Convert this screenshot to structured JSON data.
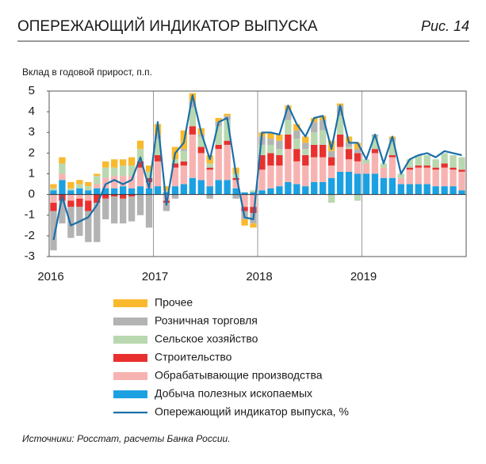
{
  "chart_data": {
    "type": "bar",
    "stacked": true,
    "title": "ОПЕРЕЖАЮЩИЙ ИНДИКАТОР ВЫПУСКА",
    "figure_label": "Рис. 14",
    "y_axis_label": "Вклад в годовой прирост, п.п.",
    "source": "Источники: Росстат, расчеты Банка России.",
    "categories": [
      "2016",
      null,
      null,
      null,
      null,
      null,
      null,
      null,
      null,
      null,
      null,
      null,
      "2017",
      null,
      null,
      null,
      null,
      null,
      null,
      null,
      null,
      null,
      null,
      null,
      "2018",
      null,
      null,
      null,
      null,
      null,
      null,
      null,
      null,
      null,
      null,
      null,
      "2019",
      null,
      null,
      null,
      null,
      null,
      null,
      null,
      null,
      null,
      null,
      null
    ],
    "ylim": [
      -3,
      5
    ],
    "yticks": [
      -3,
      -2,
      -1,
      0,
      1,
      2,
      3,
      4,
      5
    ],
    "series": [
      {
        "name": "Добыча полезных ископаемых",
        "color": "#1ba1e2",
        "values": [
          0.2,
          0.7,
          0.2,
          0.3,
          0.2,
          0.3,
          0.3,
          0.3,
          0.4,
          0.3,
          0.4,
          0.3,
          0.4,
          0.1,
          0.4,
          0.5,
          0.8,
          0.7,
          0.4,
          0.7,
          0.7,
          0.3,
          0.1,
          0.1,
          0.2,
          0.3,
          0.4,
          0.6,
          0.5,
          0.4,
          0.6,
          0.6,
          0.8,
          1.1,
          1.1,
          1.0,
          1.0,
          1.0,
          0.8,
          0.8,
          0.5,
          0.5,
          0.5,
          0.5,
          0.4,
          0.4,
          0.4,
          0.2
        ]
      },
      {
        "name": "Обрабатывающие производства",
        "color": "#f7b3b1",
        "values": [
          -0.4,
          0.3,
          -0.3,
          -0.2,
          -0.3,
          0.2,
          0.5,
          0.6,
          0.5,
          0.6,
          0.9,
          0.3,
          1.2,
          -0.3,
          0.9,
          0.9,
          2.1,
          1.3,
          0.8,
          1.5,
          1.7,
          0.4,
          -0.6,
          -0.6,
          1.0,
          1.1,
          1.0,
          1.6,
          1.1,
          1.0,
          1.2,
          1.2,
          0.6,
          1.2,
          0.6,
          0.6,
          0.5,
          1.0,
          0.5,
          1.0,
          0.3,
          0.7,
          0.8,
          0.8,
          0.8,
          0.9,
          0.8,
          0.9
        ]
      },
      {
        "name": "Строительство",
        "color": "#e8312f",
        "values": [
          -0.4,
          -0.3,
          -0.3,
          -0.4,
          -0.5,
          -0.4,
          -0.2,
          -0.1,
          -0.2,
          -0.1,
          0.3,
          0.2,
          0.3,
          -0.1,
          0.2,
          0.2,
          0.4,
          0.3,
          0.1,
          0.2,
          0.2,
          0.1,
          -0.2,
          -0.3,
          0.7,
          0.6,
          0.5,
          0.7,
          0.6,
          0.5,
          0.6,
          0.6,
          0.4,
          0.6,
          0.5,
          0.4,
          0,
          0.2,
          0,
          0.1,
          0,
          0.1,
          0.1,
          0.1,
          0.1,
          0.2,
          0.1,
          0.1
        ]
      },
      {
        "name": "Сельское хозяйство",
        "color": "#b9d8b0",
        "values": [
          0.1,
          0.5,
          0.1,
          0.2,
          0.2,
          0.4,
          0.5,
          0.4,
          0.5,
          0.5,
          0.6,
          0.3,
          0.8,
          0.1,
          0.2,
          0.5,
          0.9,
          0.5,
          0.2,
          0.9,
          1.0,
          0.2,
          0,
          0.1,
          0.5,
          0.4,
          0.3,
          0.7,
          0.5,
          0.3,
          0.6,
          0.7,
          -0.4,
          0.9,
          0.1,
          -0.3,
          0.2,
          0.6,
          0.2,
          0.7,
          0.2,
          0.4,
          0.5,
          0.5,
          0.4,
          0.5,
          0.6,
          0.6
        ]
      },
      {
        "name": "Розничная торговля",
        "color": "#b3b3b3",
        "values": [
          -1.9,
          -1.1,
          -1.5,
          -1.4,
          -1.5,
          -1.9,
          -1.0,
          -1.3,
          -1.2,
          -1.2,
          -1.0,
          -1.6,
          0.2,
          -0.4,
          -0.2,
          0.1,
          0.3,
          0.1,
          -0.2,
          0.2,
          0.2,
          -0.2,
          -0.4,
          -0.5,
          0.4,
          0.3,
          0.4,
          0.5,
          0.4,
          0.3,
          0.5,
          0.5,
          0.3,
          0.5,
          0.2,
          0.2,
          0,
          0.1,
          0,
          0.1,
          0,
          0,
          0,
          0,
          0,
          0,
          0,
          0
        ]
      },
      {
        "name": "Прочее",
        "color": "#f9b92e",
        "values": [
          0.2,
          0.3,
          0.3,
          0.2,
          0.2,
          0.1,
          0.3,
          0.4,
          0.3,
          0.4,
          0.4,
          0.3,
          0.5,
          0.2,
          0.6,
          0.9,
          0.4,
          0.3,
          0.4,
          0.2,
          0.1,
          0.3,
          -0.3,
          -0.2,
          0.2,
          0.3,
          0.3,
          0.2,
          0.3,
          0.3,
          0.2,
          0.2,
          0.5,
          0.1,
          0.3,
          0.3,
          0,
          0,
          0,
          0.1,
          0,
          0,
          0,
          0,
          0,
          0,
          0,
          0
        ]
      },
      {
        "name": "Опережающий индикатор выпуска, %",
        "color": "#1a6fa8",
        "type": "line",
        "values": [
          -2.2,
          -0.1,
          -1.5,
          -1.3,
          -1.1,
          -0.5,
          0.5,
          0.7,
          0.5,
          0.7,
          1.8,
          0.3,
          3.5,
          -0.5,
          2.0,
          2.5,
          4.8,
          3.0,
          1.7,
          3.5,
          3.7,
          1.0,
          -1.1,
          -1.2,
          3.0,
          3.0,
          2.9,
          4.3,
          3.4,
          2.8,
          3.7,
          3.8,
          2.2,
          4.3,
          2.5,
          2.5,
          1.7,
          2.9,
          1.5,
          2.8,
          1.0,
          1.7,
          1.9,
          2.0,
          1.8,
          2.1,
          2.0,
          1.9
        ]
      }
    ]
  }
}
